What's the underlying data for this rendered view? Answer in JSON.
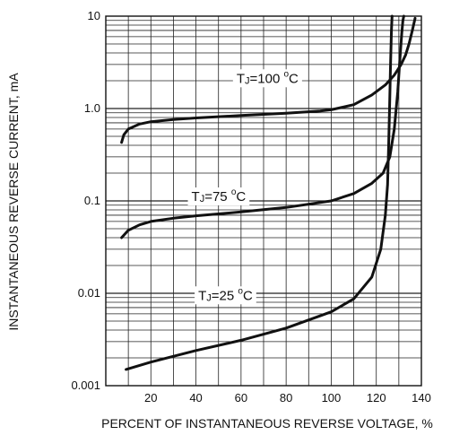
{
  "chart_data": {
    "type": "line",
    "xlabel": "PERCENT OF INSTANTANEOUS REVERSE VOLTAGE, %",
    "ylabel": "INSTANTANEOUS REVERSE CURRENT, mA",
    "xlim": [
      0,
      140
    ],
    "ylim": [
      0.001,
      10
    ],
    "y_scale": "log",
    "grid": true,
    "x_ticks": [
      20,
      40,
      60,
      80,
      100,
      120,
      140
    ],
    "y_ticks": [
      {
        "value": 10,
        "label": "10"
      },
      {
        "value": 1,
        "label": "1.0"
      },
      {
        "value": 0.1,
        "label": "0.1"
      },
      {
        "value": 0.01,
        "label": "0.01"
      },
      {
        "value": 0.001,
        "label": "0.001"
      }
    ],
    "series": [
      {
        "label_main": "T",
        "label_sub": "J",
        "label_rest": "=100",
        "label_deg": "o",
        "label_unit": "C",
        "label_at": [
          58,
          1.9
        ],
        "x": [
          7,
          8,
          10,
          15,
          20,
          30,
          40,
          60,
          80,
          95,
          100,
          110,
          118,
          124,
          128,
          131,
          133,
          134.5,
          136,
          137.2
        ],
        "y": [
          0.43,
          0.52,
          0.6,
          0.68,
          0.72,
          0.76,
          0.79,
          0.84,
          0.89,
          0.94,
          0.97,
          1.1,
          1.4,
          1.8,
          2.3,
          3.0,
          3.8,
          5.0,
          7.0,
          9.5
        ]
      },
      {
        "label_main": "T",
        "label_sub": "J",
        "label_rest": "=75",
        "label_deg": "o",
        "label_unit": "C",
        "label_at": [
          38,
          0.1
        ],
        "x": [
          7,
          10,
          15,
          20,
          30,
          40,
          60,
          80,
          100,
          110,
          118,
          123,
          126,
          128,
          129.5,
          130.5,
          131.3,
          131.8,
          132.2
        ],
        "y": [
          0.04,
          0.048,
          0.055,
          0.06,
          0.065,
          0.069,
          0.076,
          0.085,
          0.1,
          0.12,
          0.155,
          0.2,
          0.3,
          0.6,
          1.5,
          3.5,
          6.5,
          9.0,
          10.0
        ]
      },
      {
        "label_main": "T",
        "label_sub": "J",
        "label_rest": "=25",
        "label_deg": "o",
        "label_unit": "C",
        "label_at": [
          41,
          0.0085
        ],
        "x": [
          9,
          20,
          40,
          60,
          80,
          100,
          110,
          118,
          122,
          124,
          125,
          125.5,
          125.9,
          126.3,
          126.7,
          127.0
        ],
        "y": [
          0.0015,
          0.0018,
          0.0024,
          0.0031,
          0.0042,
          0.0063,
          0.0087,
          0.015,
          0.03,
          0.07,
          0.15,
          0.4,
          1.0,
          3.0,
          7.0,
          10.0
        ]
      }
    ]
  }
}
